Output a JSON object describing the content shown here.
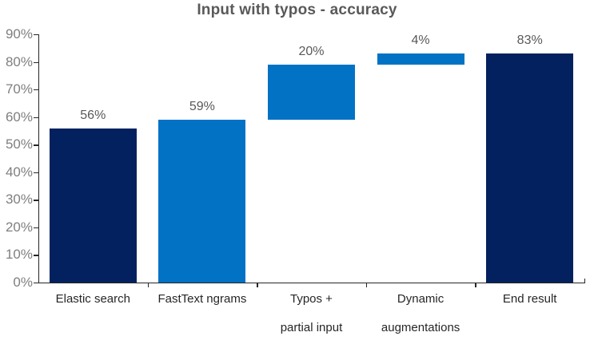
{
  "chart_data": {
    "type": "bar",
    "subtype": "waterfall",
    "title": "Input with typos - accuracy",
    "xlabel": "",
    "ylabel": "",
    "ylim": [
      0,
      90
    ],
    "grid": false,
    "legend": false,
    "y_ticks": [
      {
        "label": "0%",
        "value": 0
      },
      {
        "label": "10%",
        "value": 10
      },
      {
        "label": "20%",
        "value": 20
      },
      {
        "label": "30%",
        "value": 30
      },
      {
        "label": "40%",
        "value": 40
      },
      {
        "label": "50%",
        "value": 50
      },
      {
        "label": "60%",
        "value": 60
      },
      {
        "label": "70%",
        "value": 70
      },
      {
        "label": "80%",
        "value": 80
      },
      {
        "label": "90%",
        "value": 90
      }
    ],
    "bars": [
      {
        "name": "elastic-search",
        "category_lines": [
          "Elastic search"
        ],
        "label": "56%",
        "start": 0,
        "end": 56,
        "color": "navy"
      },
      {
        "name": "fasttext-ngrams",
        "category_lines": [
          "FastText ngrams"
        ],
        "label": "59%",
        "start": 0,
        "end": 59,
        "color": "blue"
      },
      {
        "name": "typos-partial-input",
        "category_lines": [
          "Typos +",
          "partial input"
        ],
        "label": "20%",
        "start": 59,
        "end": 79,
        "color": "blue"
      },
      {
        "name": "dynamic-augmentations",
        "category_lines": [
          "Dynamic",
          "augmentations"
        ],
        "label": "4%",
        "start": 79,
        "end": 83,
        "color": "blue"
      },
      {
        "name": "end-result",
        "category_lines": [
          "End result"
        ],
        "label": "83%",
        "start": 0,
        "end": 83,
        "color": "navy"
      }
    ],
    "colors": {
      "navy": "#03215F",
      "blue": "#0272C5",
      "title_text": "#595959",
      "data_label_text": "#595959",
      "y_tick_label_text": "#7F7F7F",
      "x_tick_label_text": "#262626",
      "axis_line": "#262626",
      "background": "#FFFFFF"
    }
  }
}
